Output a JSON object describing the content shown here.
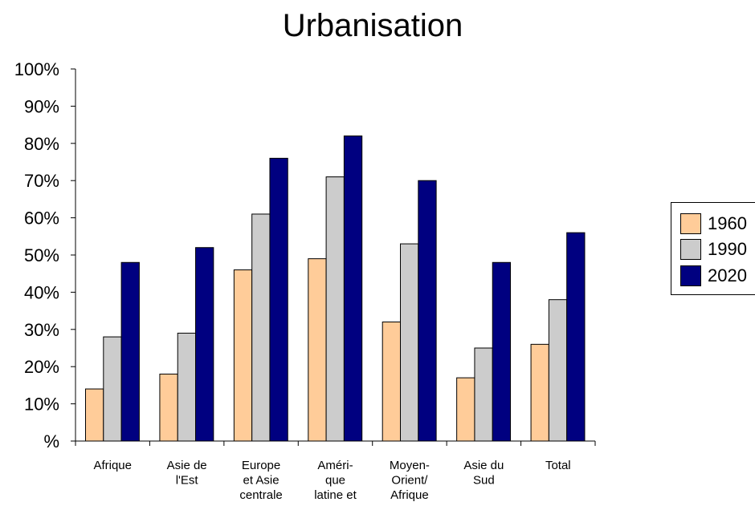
{
  "chart_data": {
    "type": "bar",
    "title": "Urbanisation",
    "categories": [
      [
        "Afrique"
      ],
      [
        "Asie de",
        "l'Est"
      ],
      [
        "Europe",
        "et Asie",
        "centrale"
      ],
      [
        "Améri-",
        "que",
        "latine et"
      ],
      [
        "Moyen-",
        "Orient/",
        "Afrique"
      ],
      [
        "Asie du",
        "Sud"
      ],
      [
        "Total"
      ]
    ],
    "series": [
      {
        "name": "1960",
        "color": "#ffcc99",
        "values": [
          14,
          18,
          46,
          49,
          32,
          17,
          26
        ]
      },
      {
        "name": "1990",
        "color": "#cccccc",
        "values": [
          28,
          29,
          61,
          71,
          53,
          25,
          38
        ]
      },
      {
        "name": "2020",
        "color": "#000080",
        "values": [
          48,
          52,
          76,
          82,
          70,
          48,
          56
        ]
      }
    ],
    "ylim": [
      0,
      100
    ],
    "yticks": [
      "%",
      "10%",
      "20%",
      "30%",
      "40%",
      "50%",
      "60%",
      "70%",
      "80%",
      "90%",
      "100%"
    ],
    "grid": false,
    "legend_position": "right"
  }
}
